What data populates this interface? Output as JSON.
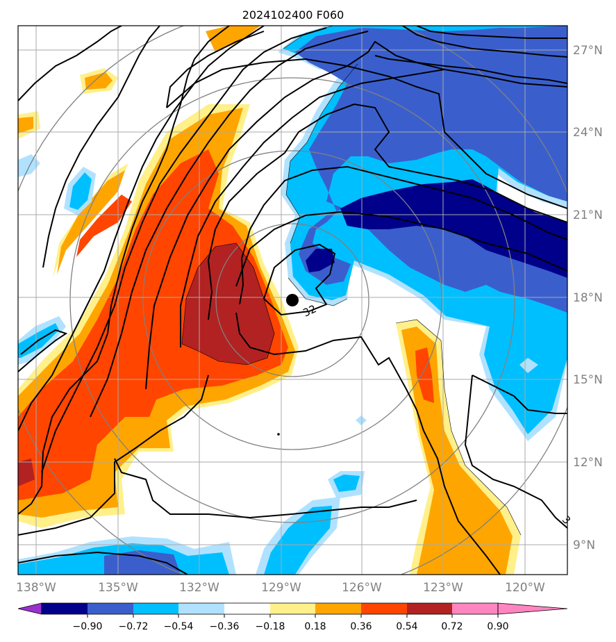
{
  "title": "2024102400 F060",
  "lon_labels": [
    "138°W",
    "135°W",
    "132°W",
    "129°W",
    "126°W",
    "123°W",
    "120°W"
  ],
  "lat_labels": [
    "27°N",
    "24°N",
    "21°N",
    "18°N",
    "15°N",
    "12°N",
    "9°N"
  ],
  "contour_labels": [
    "32",
    "3"
  ],
  "colorbar": {
    "tick_labels": [
      "−0.90",
      "−0.72",
      "−0.54",
      "−0.36",
      "−0.18",
      "0.18",
      "0.36",
      "0.54",
      "0.72",
      "0.90"
    ],
    "colors": [
      "#9b30d0",
      "#00008b",
      "#3a5fcd",
      "#00bfff",
      "#b0e2ff",
      "#ffffff",
      "#fff08a",
      "#ffa500",
      "#ff4500",
      "#b22222",
      "#ff85c1"
    ]
  },
  "colors": {
    "grid": "#aaaaaa",
    "range_rings": "#808080",
    "contours": "#000000",
    "axis_labels": "#808080"
  },
  "storm_center": {
    "lon": "128.5W",
    "lat": "17.9N"
  }
}
